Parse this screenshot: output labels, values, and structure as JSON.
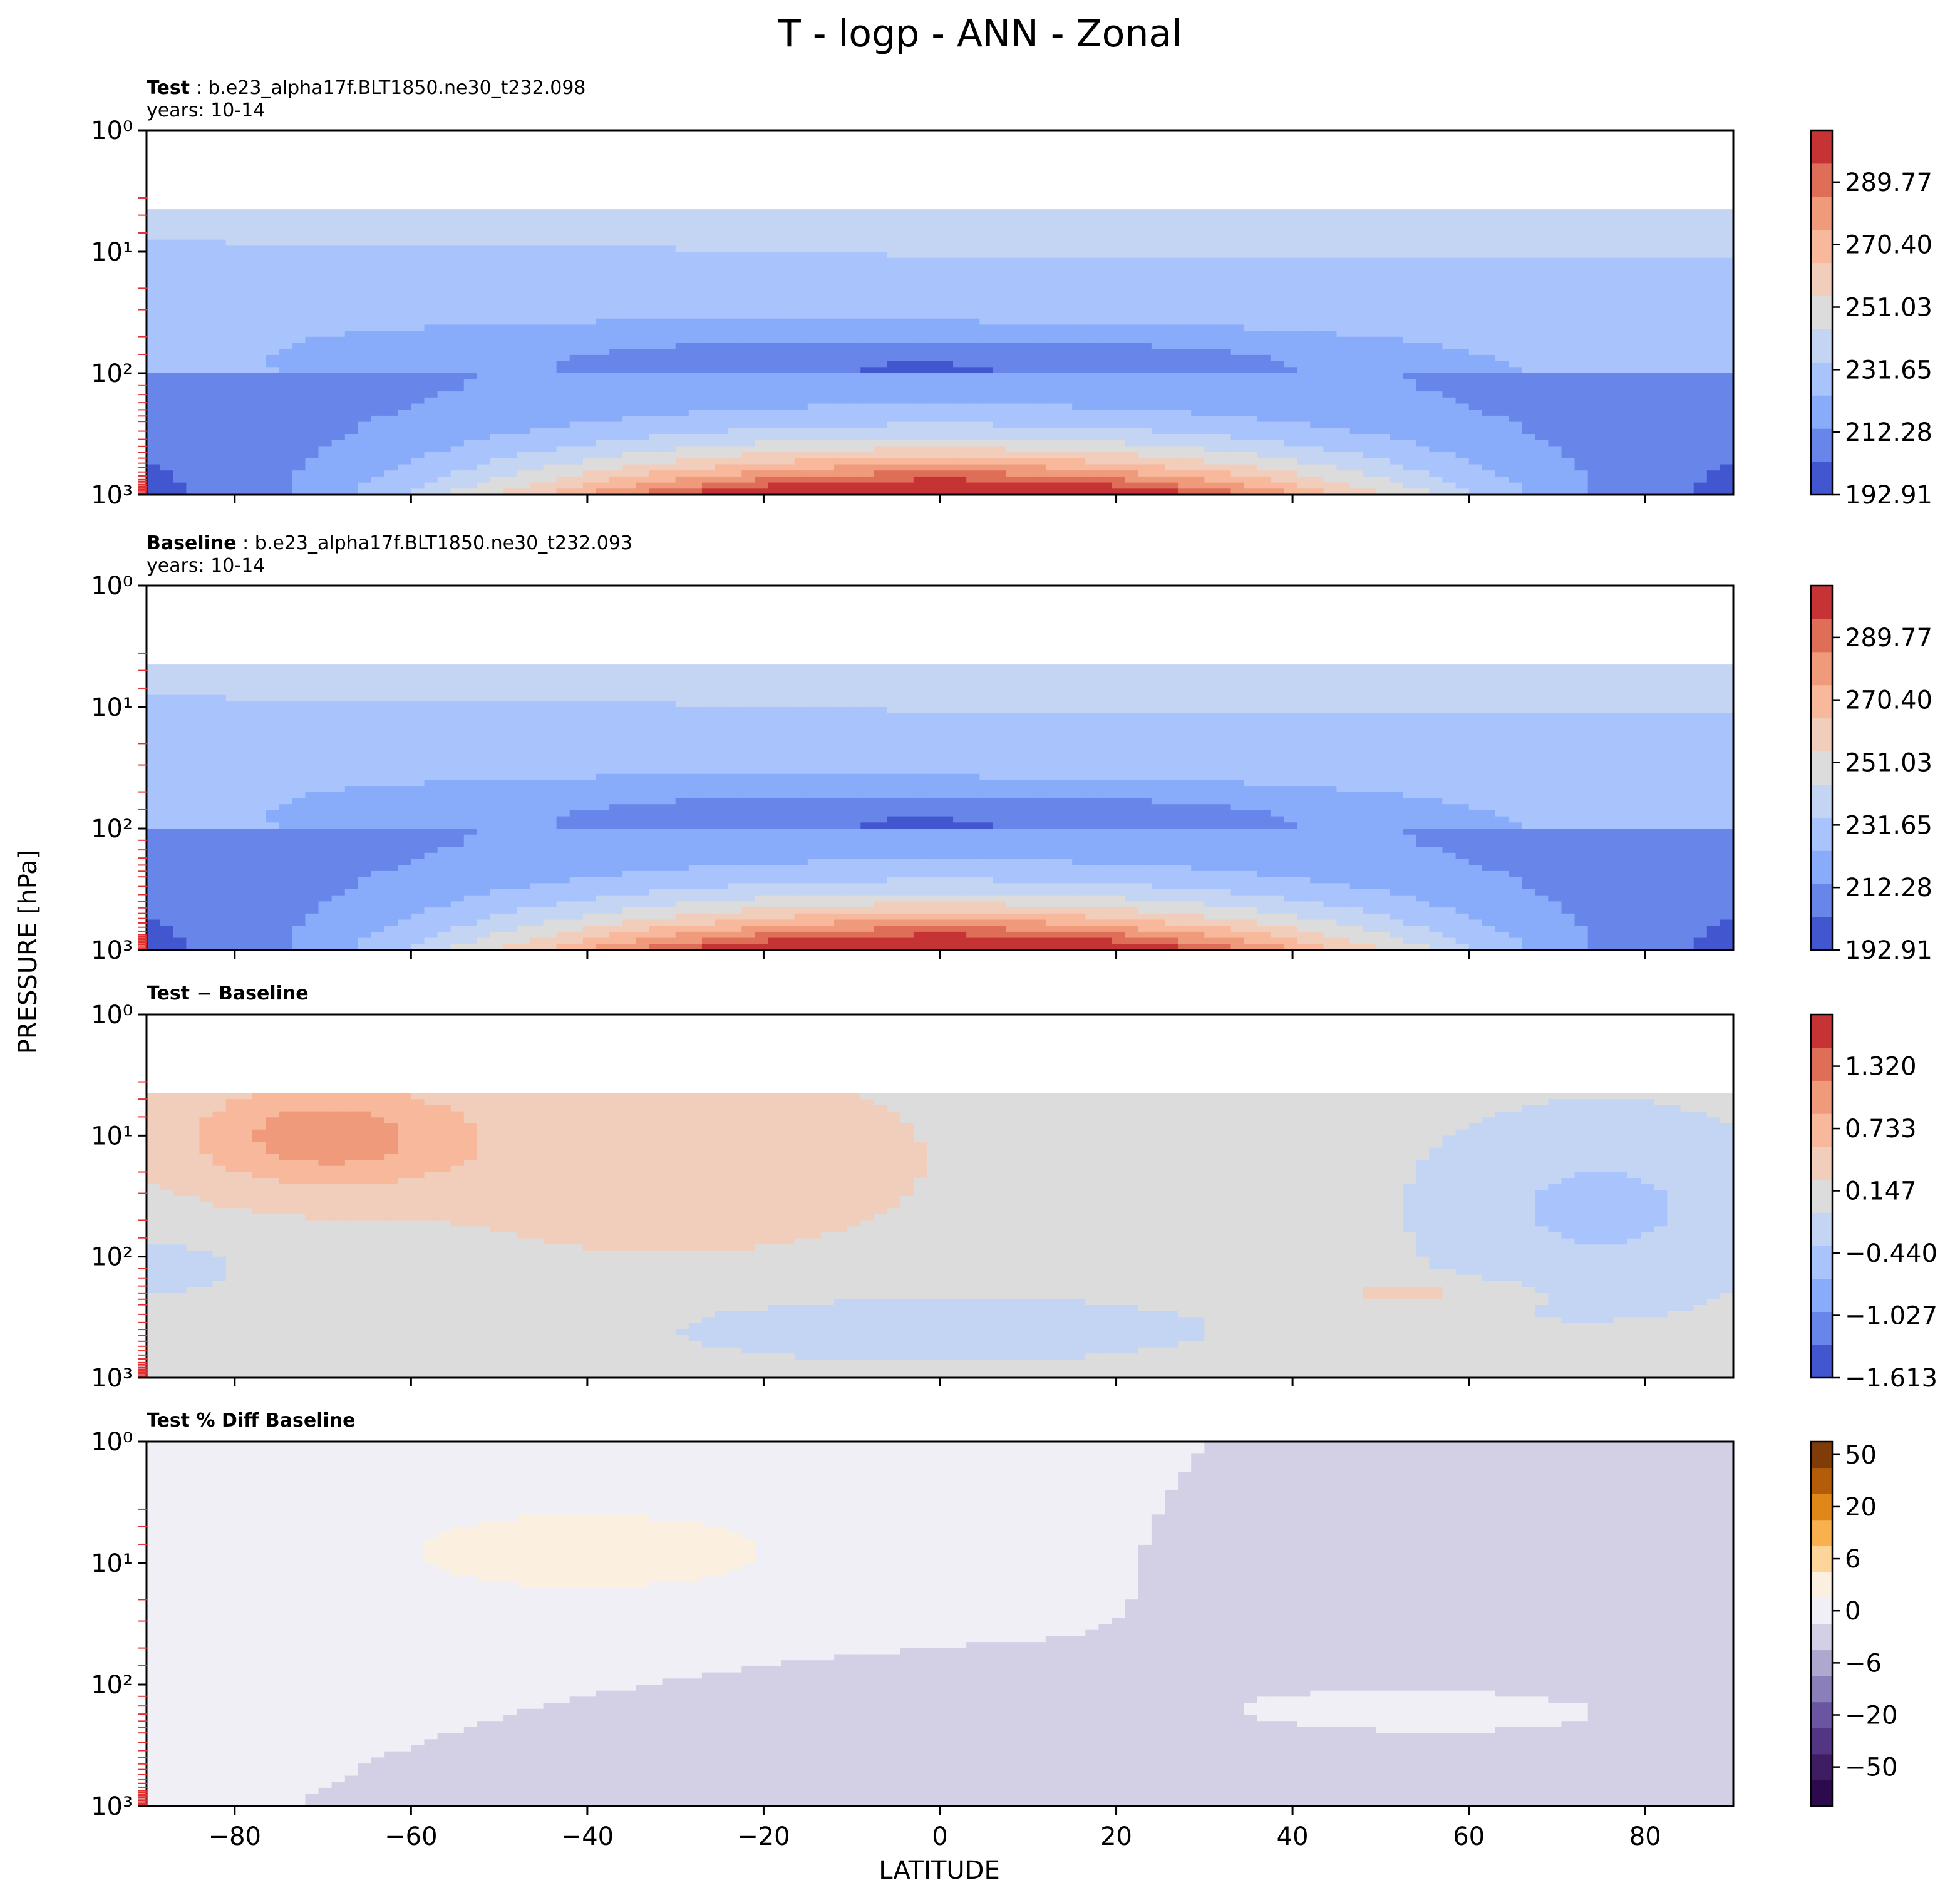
{
  "figure": {
    "title": "T - logp - ANN - Zonal",
    "xlabel": "LATITUDE",
    "ylabel": "PRESSURE [hPa]"
  },
  "chart_data": [
    {
      "type": "contour",
      "panel_label": "Test",
      "case_name": "b.e23_alpha17f.BLT1850.ne30_t232.098",
      "years": "years: 10-14",
      "x_ticks": [
        "−80",
        "−60",
        "−40",
        "−20",
        "0",
        "20",
        "40",
        "60",
        "80"
      ],
      "y_ticks": [
        "10⁰",
        "10¹",
        "10²",
        "10³"
      ],
      "xlim": [
        -90,
        90
      ],
      "ylim_hpa": [
        1000,
        1
      ],
      "y_scale": "log",
      "colormap": "coolwarm",
      "colorbar_ticks": [
        "192.91",
        "212.28",
        "231.65",
        "251.03",
        "270.40",
        "289.77"
      ],
      "colorbar_levels": 11,
      "colors": [
        "#4257cf",
        "#6886ea",
        "#88abfa",
        "#a9c4fd",
        "#c4d5f3",
        "#dddcdc",
        "#f1cdbc",
        "#f7b89c",
        "#ef9a7a",
        "#de6e57",
        "#c53334"
      ]
    },
    {
      "type": "contour",
      "panel_label": "Baseline",
      "case_name": "b.e23_alpha17f.BLT1850.ne30_t232.093",
      "years": "years: 10-14",
      "x_ticks": [
        "−80",
        "−60",
        "−40",
        "−20",
        "0",
        "20",
        "40",
        "60",
        "80"
      ],
      "y_ticks": [
        "10⁰",
        "10¹",
        "10²",
        "10³"
      ],
      "xlim": [
        -90,
        90
      ],
      "ylim_hpa": [
        1000,
        1
      ],
      "y_scale": "log",
      "colormap": "coolwarm",
      "colorbar_ticks": [
        "192.91",
        "212.28",
        "231.65",
        "251.03",
        "270.40",
        "289.77"
      ],
      "colorbar_levels": 11,
      "colors": [
        "#4257cf",
        "#6886ea",
        "#88abfa",
        "#a9c4fd",
        "#c4d5f3",
        "#dddcdc",
        "#f1cdbc",
        "#f7b89c",
        "#ef9a7a",
        "#de6e57",
        "#c53334"
      ]
    },
    {
      "type": "contour",
      "panel_label": "Test − Baseline",
      "x_ticks": [
        "−80",
        "−60",
        "−40",
        "−20",
        "0",
        "20",
        "40",
        "60",
        "80"
      ],
      "y_ticks": [
        "10⁰",
        "10¹",
        "10²",
        "10³"
      ],
      "xlim": [
        -90,
        90
      ],
      "ylim_hpa": [
        1000,
        1
      ],
      "y_scale": "log",
      "colormap": "coolwarm",
      "colorbar_ticks": [
        "−1.613",
        "−1.027",
        "−0.440",
        "0.147",
        "0.733",
        "1.320"
      ],
      "colorbar_levels": 11,
      "colors": [
        "#4257cf",
        "#6886ea",
        "#88abfa",
        "#a9c4fd",
        "#c4d5f3",
        "#dddcdc",
        "#f1cdbc",
        "#f7b89c",
        "#ef9a7a",
        "#de6e57",
        "#c53334"
      ]
    },
    {
      "type": "contour",
      "panel_label": "Test % Diff Baseline",
      "x_ticks": [
        "−80",
        "−60",
        "−40",
        "−20",
        "0",
        "20",
        "40",
        "60",
        "80"
      ],
      "y_ticks": [
        "10⁰",
        "10¹",
        "10²",
        "10³"
      ],
      "xlim": [
        -90,
        90
      ],
      "ylim_hpa": [
        1000,
        1
      ],
      "y_scale": "log",
      "colormap": "PuOr_r",
      "colorbar_ticks": [
        "−50",
        "−20",
        "−6",
        "0",
        "6",
        "20",
        "50"
      ],
      "colorbar_levels": 14,
      "colors": [
        "#2d0a4e",
        "#3e1d63",
        "#523583",
        "#6a55a0",
        "#8a7fb8",
        "#aea8cf",
        "#d3d0e5",
        "#f0eff5",
        "#fbf0e0",
        "#fdd49a",
        "#f9b04e",
        "#e0871a",
        "#b35d0a",
        "#7f3b08"
      ]
    }
  ]
}
